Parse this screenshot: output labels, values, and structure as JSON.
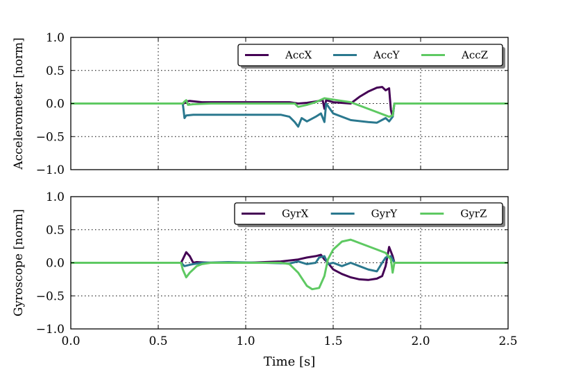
{
  "chart_data": [
    {
      "type": "line",
      "ylabel": "Accelerometer [norm]",
      "xlabel": "",
      "xlim": [
        0.0,
        2.5
      ],
      "ylim": [
        -1.0,
        1.0
      ],
      "xticks": [
        0.0,
        0.5,
        1.0,
        1.5,
        2.0,
        2.5
      ],
      "yticks": [
        -1.0,
        -0.5,
        0.0,
        0.5,
        1.0
      ],
      "xtick_labels": [
        "",
        "",
        "",
        "",
        "",
        ""
      ],
      "ytick_labels": [
        "−1.0",
        "−0.5",
        "0.0",
        "0.5",
        "1.0"
      ],
      "grid": true,
      "legend_position": "top-right",
      "series": [
        {
          "name": "AccX",
          "color": "#440154",
          "x": [
            0,
            0.64,
            0.645,
            0.66,
            0.68,
            0.75,
            0.9,
            1.1,
            1.25,
            1.3,
            1.35,
            1.4,
            1.44,
            1.45,
            1.46,
            1.5,
            1.6,
            1.65,
            1.7,
            1.75,
            1.78,
            1.8,
            1.82,
            1.83,
            1.84,
            1.85,
            2.5
          ],
          "y": [
            0,
            0,
            0.0,
            0.03,
            0.04,
            0.02,
            0.02,
            0.02,
            0.02,
            0.0,
            0.01,
            0.03,
            0.05,
            -0.08,
            0.05,
            0.02,
            0.0,
            0.1,
            0.18,
            0.24,
            0.25,
            0.2,
            0.23,
            -0.1,
            -0.2,
            0,
            0
          ]
        },
        {
          "name": "AccY",
          "color": "#2a788e",
          "x": [
            0,
            0.64,
            0.645,
            0.65,
            0.66,
            0.7,
            0.8,
            1.0,
            1.2,
            1.25,
            1.28,
            1.3,
            1.32,
            1.35,
            1.4,
            1.43,
            1.45,
            1.46,
            1.5,
            1.6,
            1.7,
            1.75,
            1.8,
            1.82,
            1.84,
            1.85,
            2.5
          ],
          "y": [
            0,
            0,
            -0.1,
            -0.22,
            -0.18,
            -0.17,
            -0.17,
            -0.17,
            -0.17,
            -0.2,
            -0.28,
            -0.35,
            -0.22,
            -0.27,
            -0.2,
            -0.15,
            -0.28,
            0.0,
            -0.15,
            -0.25,
            -0.28,
            -0.29,
            -0.22,
            -0.27,
            -0.2,
            0,
            0
          ]
        },
        {
          "name": "AccZ",
          "color": "#5ec962",
          "x": [
            0,
            0.64,
            0.65,
            0.66,
            0.67,
            0.7,
            0.8,
            1.0,
            1.2,
            1.28,
            1.3,
            1.35,
            1.4,
            1.45,
            1.5,
            1.6,
            1.65,
            1.7,
            1.75,
            1.8,
            1.82,
            1.84,
            1.85,
            2.5
          ],
          "y": [
            0,
            0,
            0.03,
            0.05,
            -0.02,
            -0.01,
            0.0,
            0.0,
            0.0,
            0.0,
            -0.05,
            -0.02,
            0.02,
            0.08,
            0.06,
            0.02,
            -0.03,
            -0.08,
            -0.13,
            -0.18,
            -0.2,
            -0.18,
            0,
            0
          ]
        }
      ]
    },
    {
      "type": "line",
      "ylabel": "Gyroscope [norm]",
      "xlabel": "Time [s]",
      "xlim": [
        0.0,
        2.5
      ],
      "ylim": [
        -1.0,
        1.0
      ],
      "xticks": [
        0.0,
        0.5,
        1.0,
        1.5,
        2.0,
        2.5
      ],
      "yticks": [
        -1.0,
        -0.5,
        0.0,
        0.5,
        1.0
      ],
      "xtick_labels": [
        "0.0",
        "0.5",
        "1.0",
        "1.5",
        "2.0",
        "2.5"
      ],
      "ytick_labels": [
        "−1.0",
        "−0.5",
        "0.0",
        "0.5",
        "1.0"
      ],
      "grid": true,
      "legend_position": "top-right",
      "series": [
        {
          "name": "GyrX",
          "color": "#440154",
          "x": [
            0,
            0.63,
            0.64,
            0.66,
            0.68,
            0.7,
            0.72,
            0.8,
            1.0,
            1.2,
            1.3,
            1.35,
            1.4,
            1.43,
            1.45,
            1.47,
            1.5,
            1.55,
            1.6,
            1.65,
            1.7,
            1.75,
            1.78,
            1.8,
            1.82,
            1.84,
            1.85,
            2.5
          ],
          "y": [
            0,
            0,
            0.05,
            0.16,
            0.1,
            0.0,
            0.01,
            0.0,
            0.0,
            0.02,
            0.05,
            0.08,
            0.1,
            0.12,
            0.05,
            0.0,
            -0.1,
            -0.17,
            -0.22,
            -0.25,
            -0.26,
            -0.24,
            -0.2,
            -0.05,
            0.24,
            0.1,
            0,
            0
          ]
        },
        {
          "name": "GyrY",
          "color": "#2a788e",
          "x": [
            0,
            0.63,
            0.65,
            0.68,
            0.7,
            0.75,
            0.9,
            1.1,
            1.25,
            1.3,
            1.35,
            1.4,
            1.42,
            1.45,
            1.47,
            1.5,
            1.55,
            1.6,
            1.65,
            1.7,
            1.75,
            1.78,
            1.8,
            1.83,
            1.85,
            2.5
          ],
          "y": [
            0,
            0,
            -0.05,
            -0.03,
            -0.02,
            0.0,
            0.01,
            0.0,
            -0.01,
            0.02,
            -0.02,
            0.0,
            0.08,
            0.1,
            -0.02,
            0.0,
            -0.05,
            0.0,
            -0.05,
            -0.1,
            -0.13,
            0.0,
            0.08,
            0.1,
            0,
            0
          ]
        },
        {
          "name": "GyrZ",
          "color": "#5ec962",
          "x": [
            0,
            0.63,
            0.64,
            0.66,
            0.68,
            0.7,
            0.72,
            0.75,
            0.8,
            1.0,
            1.2,
            1.25,
            1.3,
            1.35,
            1.38,
            1.42,
            1.45,
            1.47,
            1.5,
            1.55,
            1.6,
            1.65,
            1.7,
            1.75,
            1.8,
            1.83,
            1.84,
            1.85,
            2.5
          ],
          "y": [
            0,
            0,
            -0.1,
            -0.22,
            -0.15,
            -0.1,
            -0.05,
            -0.02,
            0.0,
            0.0,
            0.0,
            -0.02,
            -0.15,
            -0.35,
            -0.4,
            -0.38,
            -0.2,
            0.05,
            0.2,
            0.32,
            0.35,
            0.3,
            0.25,
            0.2,
            0.15,
            0.05,
            -0.15,
            0,
            0
          ]
        }
      ]
    }
  ]
}
